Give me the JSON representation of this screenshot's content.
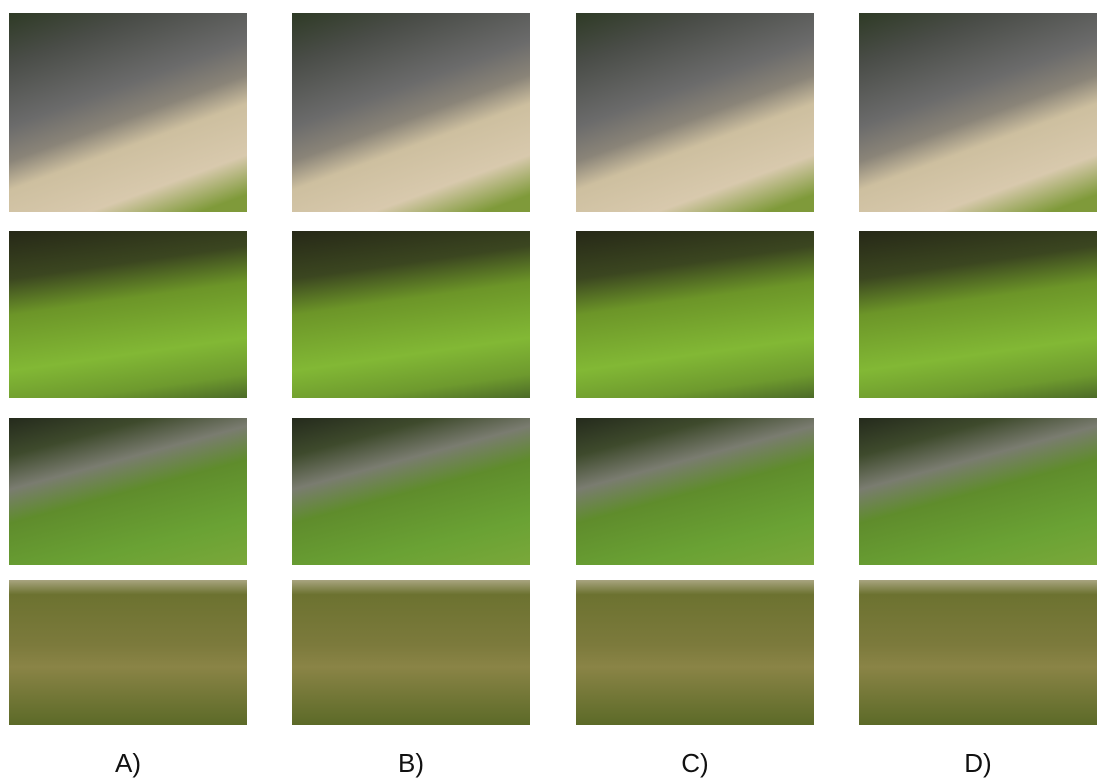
{
  "columns": [
    {
      "label": "A)"
    },
    {
      "label": "B)"
    },
    {
      "label": "C)"
    },
    {
      "label": "D)"
    }
  ]
}
